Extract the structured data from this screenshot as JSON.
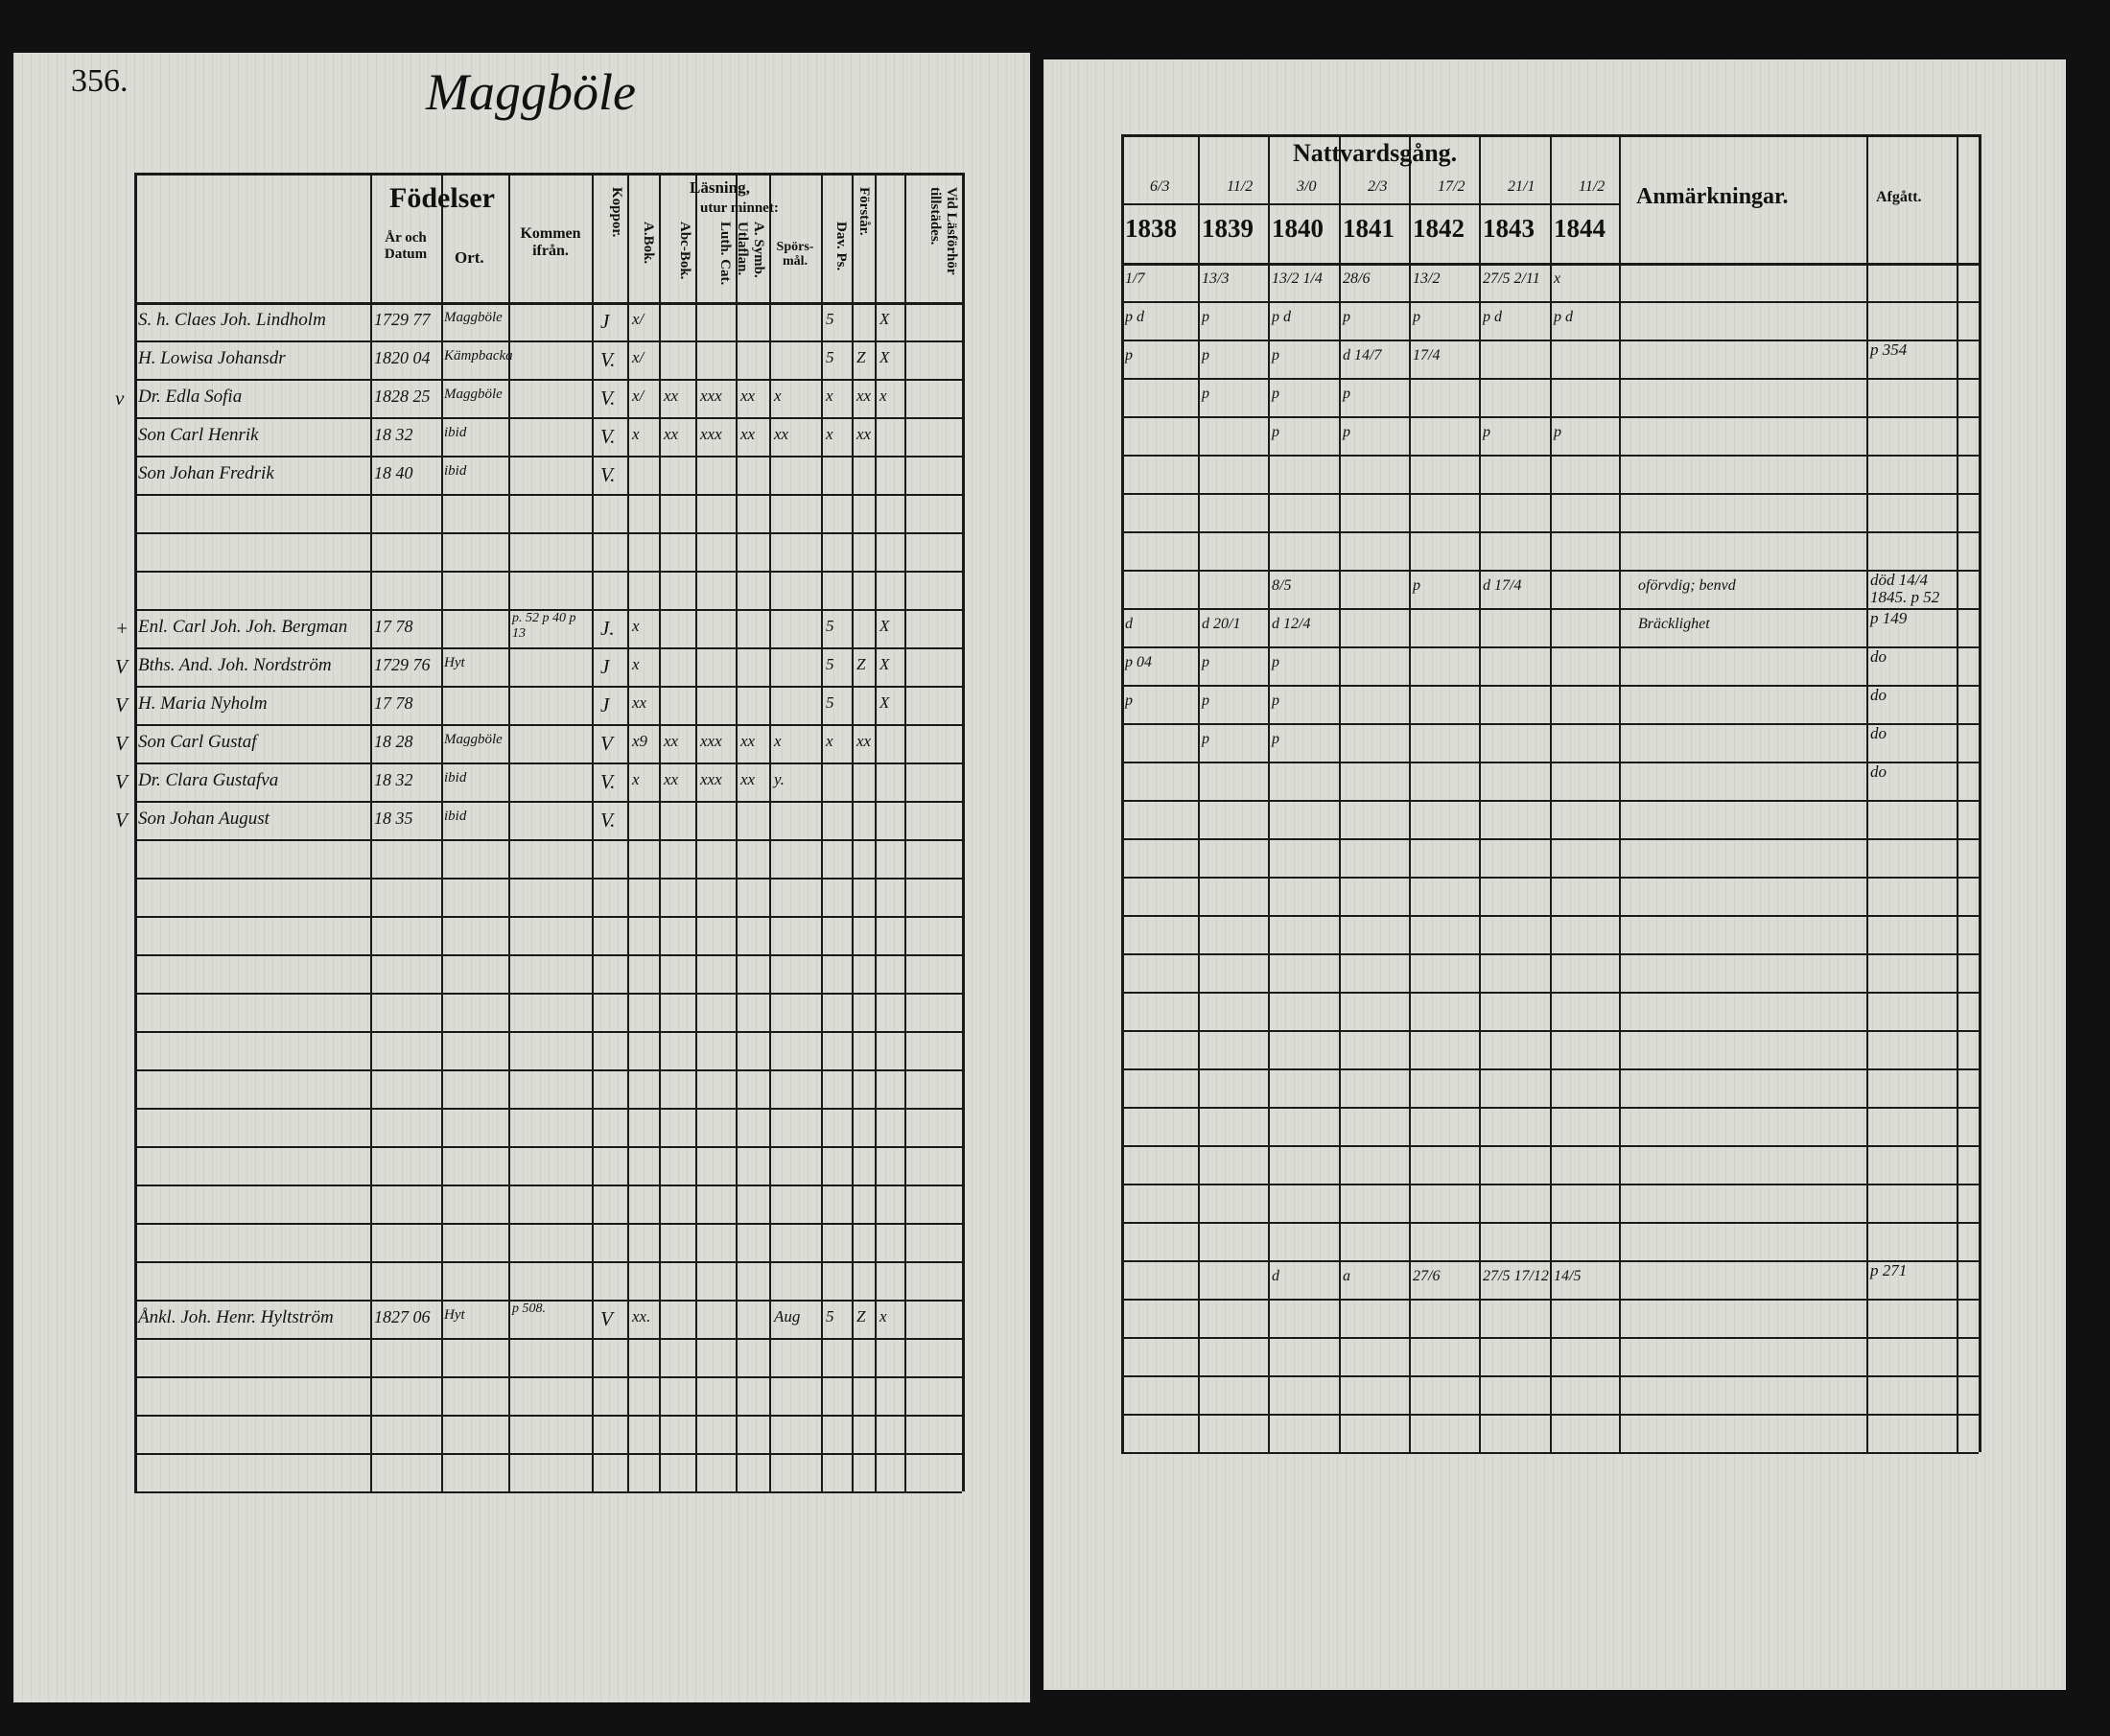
{
  "left_page": {
    "page_number": "356.",
    "village": "Maggböle",
    "headers": {
      "fodelser": "Födelser",
      "ar_datum": "År och Datum",
      "ort": "Ort.",
      "kommen": "Kommen ifrån.",
      "koppor": "Koppor.",
      "lasning": "Läsning,",
      "utur_minnet": "utur minnet:",
      "a_bok": "A.Bok.",
      "abc_bok": "Abc-Bok.",
      "luth_cat": "Luth. Cat.",
      "a_symb": "A. Symb. Utlaflan.",
      "sporsmal": "Spörs-mål.",
      "dav_ps": "Dav. Ps.",
      "forstar": "Förstår.",
      "vid_lasforhor": "Vid Läsförhör tillstädes."
    },
    "rows": [
      {
        "row": 0,
        "mark": "",
        "name": "S. h. Claes Joh. Lindholm",
        "date": "1729 77",
        "ort": "Maggböle",
        "kommen": "",
        "koppor": "J",
        "reading": [
          "x/",
          "",
          "",
          "",
          "",
          "5",
          "",
          "X"
        ]
      },
      {
        "row": 1,
        "mark": "",
        "name": "H. Lowisa Johansdr",
        "date": "1820 04",
        "ort": "Kämpbacka",
        "kommen": "",
        "koppor": "V.",
        "reading": [
          "x/",
          "",
          "",
          "",
          "",
          "5",
          "Z",
          "X"
        ]
      },
      {
        "row": 2,
        "mark": "v",
        "name": "Dr. Edla Sofia",
        "date": "1828 25",
        "ort": "Maggböle",
        "kommen": "",
        "koppor": "V.",
        "reading": [
          "x/",
          "xx",
          "xxx",
          "xx",
          "x",
          "x",
          "xx",
          "x"
        ]
      },
      {
        "row": 3,
        "mark": "",
        "name": "Son Carl Henrik",
        "date": "18 32",
        "ort": "ibid",
        "kommen": "",
        "koppor": "V.",
        "reading": [
          "x",
          "xx",
          "xxx",
          "xx",
          "xx",
          "x",
          "xx",
          ""
        ]
      },
      {
        "row": 4,
        "mark": "",
        "name": "Son Johan Fredrik",
        "date": "18 40",
        "ort": "ibid",
        "kommen": "",
        "koppor": "V.",
        "reading": [
          "",
          "",
          "",
          "",
          "",
          "",
          "",
          ""
        ]
      },
      {
        "row": 8,
        "mark": "+",
        "name": "Enl. Carl Joh. Joh. Bergman",
        "date": "17 78",
        "ort": "",
        "kommen": "p. 52 p 40 p 13",
        "koppor": "J.",
        "reading": [
          "x",
          "",
          "",
          "",
          "",
          "5",
          "",
          "X"
        ]
      },
      {
        "row": 9,
        "mark": "V",
        "name": "Bths. And. Joh. Nordström",
        "date": "1729 76",
        "ort": "Hyt",
        "kommen": "",
        "koppor": "J",
        "reading": [
          "x",
          "",
          "",
          "",
          "",
          "5",
          "Z",
          "X"
        ]
      },
      {
        "row": 10,
        "mark": "V",
        "name": "H. Maria Nyholm",
        "date": "17 78",
        "ort": "",
        "kommen": "",
        "koppor": "J",
        "reading": [
          "xx",
          "",
          "",
          "",
          "",
          "5",
          "",
          "X"
        ]
      },
      {
        "row": 11,
        "mark": "V",
        "name": "Son Carl Gustaf",
        "date": "18 28",
        "ort": "Maggböle",
        "kommen": "",
        "koppor": "V",
        "reading": [
          "x9",
          "xx",
          "xxx",
          "xx",
          "x",
          "x",
          "xx",
          ""
        ]
      },
      {
        "row": 12,
        "mark": "V",
        "name": "Dr. Clara Gustafva",
        "date": "18 32",
        "ort": "ibid",
        "kommen": "",
        "koppor": "V.",
        "reading": [
          "x",
          "xx",
          "xxx",
          "xx",
          "y.",
          "",
          "",
          ""
        ]
      },
      {
        "row": 13,
        "mark": "V",
        "name": "Son Johan August",
        "date": "18 35",
        "ort": "ibid",
        "kommen": "",
        "koppor": "V.",
        "reading": [
          "",
          "",
          "",
          "",
          "",
          "",
          "",
          ""
        ]
      },
      {
        "row": 26,
        "mark": "",
        "name": "Ånkl. Joh. Henr. Hyltström",
        "date": "1827 06",
        "ort": "Hyt",
        "kommen": "p 508.",
        "koppor": "V",
        "reading": [
          "xx.",
          "",
          "",
          "",
          "Aug",
          "5",
          "Z",
          "x"
        ]
      }
    ]
  },
  "right_page": {
    "headers": {
      "nattvardsgang": "Nattvardsgång.",
      "anmarkningar": "Anmärkningar.",
      "afgatt": "Afgått."
    },
    "years": [
      "1838",
      "1839",
      "1840",
      "1841",
      "1842",
      "1843",
      "1844"
    ],
    "year_dates": [
      "6/3",
      "11/2",
      "3/0",
      "2/3",
      "17/2",
      "21/1",
      "11/2"
    ],
    "rows": [
      {
        "row": 0,
        "cells": [
          "1/7",
          "13/3",
          "13/2 1/4",
          "28/6",
          "13/2",
          "27/5 2/11",
          "x"
        ],
        "remark": "",
        "afgatt": ""
      },
      {
        "row": 1,
        "cells": [
          "p d",
          "p",
          "p d",
          "p",
          "p",
          "p d",
          "p d"
        ],
        "remark": "",
        "afgatt": ""
      },
      {
        "row": 2,
        "cells": [
          "p",
          "p",
          "p",
          "d 14/7",
          "17/4",
          "",
          ""
        ],
        "remark": "",
        "afgatt": "p 354"
      },
      {
        "row": 3,
        "cells": [
          "",
          "p",
          "p",
          "p",
          "",
          "",
          ""
        ],
        "remark": "",
        "afgatt": ""
      },
      {
        "row": 4,
        "cells": [
          "",
          "",
          "p",
          "p",
          "",
          "p",
          "p"
        ],
        "remark": "",
        "afgatt": ""
      },
      {
        "row": 8,
        "cells": [
          "",
          "",
          "8/5",
          "",
          "p",
          "d 17/4",
          ""
        ],
        "remark": "oförvdig; benvd",
        "afgatt": "död 14/4 1845. p 52"
      },
      {
        "row": 9,
        "cells": [
          "d",
          "d 20/1",
          "d 12/4",
          "",
          "",
          "",
          ""
        ],
        "remark": "Bräcklighet",
        "afgatt": "p 149"
      },
      {
        "row": 10,
        "cells": [
          "p 04",
          "p",
          "p",
          "",
          "",
          "",
          ""
        ],
        "remark": "",
        "afgatt": "do"
      },
      {
        "row": 11,
        "cells": [
          "p",
          "p",
          "p",
          "",
          "",
          "",
          ""
        ],
        "remark": "",
        "afgatt": "do"
      },
      {
        "row": 12,
        "cells": [
          "",
          "p",
          "p",
          "",
          "",
          "",
          ""
        ],
        "remark": "",
        "afgatt": "do"
      },
      {
        "row": 13,
        "cells": [
          "",
          "",
          "",
          "",
          "",
          "",
          ""
        ],
        "remark": "",
        "afgatt": "do"
      },
      {
        "row": 26,
        "cells": [
          "",
          "",
          "d",
          "a",
          "27/6",
          "27/5 17/12",
          "14/5"
        ],
        "remark": "",
        "afgatt": "p 271"
      }
    ]
  }
}
